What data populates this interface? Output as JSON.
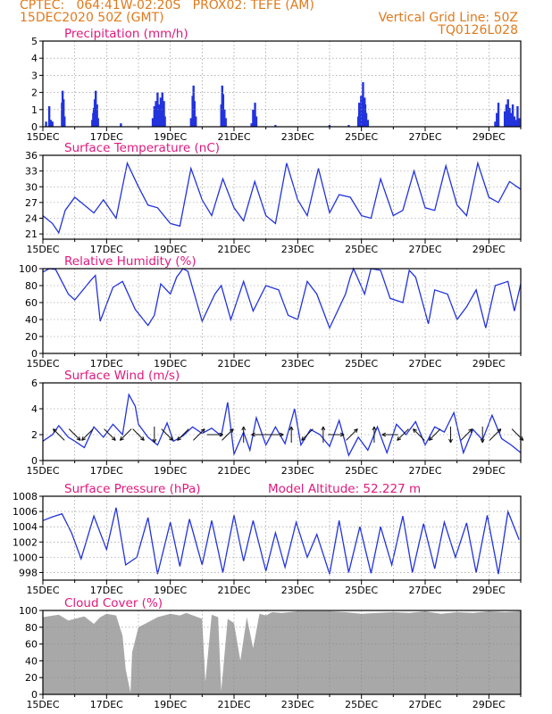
{
  "header": {
    "line1_left": "CPTEC:   064:41W-02:20S   PROX02: TEFE (AM)",
    "line2_left": "15DEC2020 50Z (GMT)",
    "line1_right": "Vertical Grid Line: 50Z",
    "line2_right": "TQ0126L028",
    "color": "#e07a1c"
  },
  "colors": {
    "series": "#2233dd",
    "title": "#e0197d",
    "cloud": "#a8a8a8",
    "grid": "#888888",
    "arrow": "#111111"
  },
  "x_axis": {
    "tick_labels": [
      "15DEC",
      "17DEC",
      "19DEC",
      "21DEC",
      "23DEC",
      "25DEC",
      "27DEC",
      "29DEC"
    ],
    "tick_days": [
      0,
      2,
      4,
      6,
      8,
      10,
      12,
      14
    ],
    "xlim_days": [
      0,
      15
    ]
  },
  "chart_data": [
    {
      "type": "bar",
      "title": "Precipitation (mm/h)",
      "ylim": [
        0,
        5
      ],
      "yticks": [
        0,
        1,
        2,
        3,
        4,
        5
      ],
      "x": [
        0.1,
        0.2,
        0.25,
        0.3,
        0.6,
        0.62,
        0.65,
        0.68,
        1.55,
        1.58,
        1.6,
        1.63,
        1.66,
        1.7,
        1.73,
        2.45,
        3.45,
        3.5,
        3.55,
        3.6,
        3.65,
        3.7,
        3.75,
        3.8,
        3.83,
        4.65,
        4.7,
        4.73,
        4.76,
        4.8,
        5.6,
        5.63,
        5.66,
        5.7,
        5.74,
        6.55,
        6.6,
        6.66,
        6.7,
        7.3,
        9.0,
        9.6,
        9.9,
        9.93,
        9.96,
        9.99,
        10.02,
        10.05,
        10.1,
        10.12,
        10.15,
        10.2,
        14.2,
        14.25,
        14.3,
        14.5,
        14.55,
        14.6,
        14.65,
        14.7,
        14.75,
        14.8,
        14.85,
        14.9,
        14.95
      ],
      "values": [
        0.3,
        1.2,
        0.4,
        0.3,
        1.4,
        2.1,
        1.6,
        0.6,
        0.4,
        0.8,
        1.1,
        1.6,
        2.1,
        1.3,
        0.5,
        0.2,
        0.5,
        1.2,
        1.5,
        2.0,
        1.3,
        1.7,
        2.0,
        1.5,
        0.6,
        0.5,
        1.8,
        2.4,
        1.5,
        0.6,
        1.3,
        2.4,
        1.9,
        1.0,
        0.5,
        0.2,
        1.0,
        1.4,
        0.6,
        0.1,
        0.1,
        0.1,
        0.6,
        1.4,
        1.0,
        1.8,
        1.4,
        2.6,
        1.7,
        1.3,
        0.8,
        0.4,
        0.3,
        0.8,
        1.4,
        0.9,
        1.3,
        1.6,
        1.1,
        0.8,
        1.3,
        0.6,
        0.4,
        1.2,
        0.5
      ]
    },
    {
      "type": "line",
      "title": "Surface Temperature (nC)",
      "ylim": [
        20,
        36
      ],
      "yticks": [
        21,
        24,
        27,
        30,
        33,
        36
      ],
      "x": [
        0,
        0.3,
        0.5,
        0.7,
        1.0,
        1.3,
        1.6,
        1.9,
        2.3,
        2.65,
        3.0,
        3.3,
        3.6,
        4.0,
        4.3,
        4.65,
        5.0,
        5.3,
        5.65,
        6.0,
        6.3,
        6.65,
        7.0,
        7.3,
        7.65,
        8.0,
        8.3,
        8.65,
        9.0,
        9.3,
        9.65,
        10.0,
        10.3,
        10.6,
        11.0,
        11.3,
        11.65,
        12.0,
        12.3,
        12.65,
        13.0,
        13.3,
        13.65,
        14.0,
        14.3,
        14.65,
        15.0
      ],
      "values": [
        24.5,
        23.0,
        21.2,
        25.5,
        28.0,
        26.5,
        25.0,
        27.5,
        24.0,
        34.5,
        30.0,
        26.5,
        26.0,
        23.0,
        22.5,
        33.5,
        27.5,
        24.5,
        31.5,
        26.0,
        23.5,
        31.0,
        24.5,
        23.0,
        34.5,
        27.5,
        24.5,
        33.5,
        25.0,
        28.5,
        28.0,
        24.5,
        24.0,
        31.5,
        24.5,
        25.5,
        33.0,
        26.0,
        25.5,
        34.0,
        26.5,
        24.5,
        34.5,
        28.0,
        27.0,
        31.0,
        29.5
      ]
    },
    {
      "type": "line",
      "title": "Relative Humidity (%)",
      "ylim": [
        0,
        100
      ],
      "yticks": [
        0,
        20,
        40,
        60,
        80,
        100
      ],
      "x": [
        0,
        0.2,
        0.4,
        0.8,
        1.0,
        1.5,
        1.65,
        1.8,
        2.2,
        2.5,
        2.9,
        3.3,
        3.5,
        3.7,
        4.0,
        4.2,
        4.4,
        4.55,
        5.0,
        5.4,
        5.6,
        5.9,
        6.3,
        6.6,
        7.0,
        7.4,
        7.7,
        8.0,
        8.3,
        8.6,
        9.0,
        9.5,
        9.65,
        9.75,
        10.1,
        10.3,
        10.6,
        10.9,
        11.3,
        11.5,
        11.7,
        12.1,
        12.3,
        12.7,
        13.0,
        13.3,
        13.6,
        13.9,
        14.2,
        14.6,
        14.8,
        15.0
      ],
      "values": [
        96,
        100,
        99,
        70,
        63,
        86,
        92,
        38,
        78,
        85,
        52,
        33,
        45,
        82,
        70,
        90,
        100,
        97,
        38,
        70,
        80,
        40,
        85,
        50,
        80,
        75,
        45,
        40,
        85,
        70,
        30,
        70,
        90,
        100,
        70,
        100,
        98,
        65,
        60,
        98,
        90,
        35,
        75,
        70,
        40,
        55,
        75,
        30,
        80,
        85,
        50,
        82
      ]
    },
    {
      "type": "line",
      "title": "Surface Wind (m/s)",
      "ylim": [
        0,
        6
      ],
      "yticks": [
        0,
        2,
        4,
        6
      ],
      "x": [
        0,
        0.3,
        0.5,
        0.8,
        1.0,
        1.3,
        1.6,
        1.9,
        2.2,
        2.5,
        2.7,
        2.9,
        3.0,
        3.3,
        3.6,
        3.9,
        4.1,
        4.4,
        4.7,
        5.0,
        5.3,
        5.6,
        5.8,
        6.0,
        6.3,
        6.5,
        6.7,
        7.0,
        7.3,
        7.6,
        7.9,
        8.1,
        8.4,
        8.7,
        9.0,
        9.3,
        9.6,
        9.9,
        10.2,
        10.5,
        10.8,
        11.1,
        11.4,
        11.7,
        12.0,
        12.3,
        12.6,
        12.9,
        13.2,
        13.5,
        13.8,
        14.1,
        14.4,
        14.7,
        15.0
      ],
      "values": [
        1.5,
        2.0,
        2.7,
        1.8,
        1.5,
        1.0,
        2.6,
        1.8,
        2.8,
        2.0,
        5.1,
        4.2,
        2.8,
        1.8,
        1.2,
        2.9,
        1.5,
        1.9,
        2.6,
        2.1,
        2.5,
        1.9,
        4.5,
        0.5,
        2.2,
        0.8,
        3.3,
        1.2,
        2.6,
        1.3,
        4.0,
        1.2,
        2.4,
        2.0,
        1.1,
        3.1,
        0.4,
        1.8,
        0.8,
        2.6,
        0.6,
        2.8,
        2.0,
        3.0,
        1.2,
        2.6,
        2.2,
        3.7,
        0.6,
        2.4,
        1.6,
        3.5,
        1.7,
        1.2,
        0.6
      ],
      "vector_x": [
        0.5,
        1.0,
        1.4,
        2.1,
        2.6,
        3.0,
        3.5,
        3.9,
        4.4,
        4.9,
        5.4,
        5.8,
        6.3,
        6.8,
        7.3,
        7.8,
        8.3,
        8.8,
        9.2,
        9.7,
        10.4,
        10.9,
        11.3,
        11.8,
        12.3,
        12.8,
        13.3,
        13.8,
        14.2,
        14.9
      ],
      "vector_dir_deg": [
        135,
        315,
        225,
        315,
        225,
        315,
        270,
        315,
        225,
        45,
        0,
        45,
        90,
        180,
        0,
        90,
        225,
        90,
        0,
        45,
        90,
        180,
        225,
        135,
        225,
        270,
        45,
        270,
        45,
        315
      ]
    },
    {
      "type": "line",
      "title": "Surface Pressure (hPa)",
      "annotation": "Model Altitude: 52.227 m",
      "ylim": [
        997,
        1008
      ],
      "yticks": [
        998,
        1000,
        1002,
        1004,
        1006,
        1008
      ],
      "x": [
        0,
        0.3,
        0.6,
        0.9,
        1.2,
        1.6,
        2.0,
        2.3,
        2.6,
        2.95,
        3.3,
        3.6,
        4.0,
        4.3,
        4.6,
        5.0,
        5.3,
        5.65,
        6.0,
        6.3,
        6.6,
        7.0,
        7.3,
        7.6,
        7.95,
        8.3,
        8.6,
        9.0,
        9.3,
        9.6,
        9.95,
        10.3,
        10.6,
        10.95,
        11.3,
        11.6,
        11.95,
        12.3,
        12.6,
        12.95,
        13.3,
        13.6,
        13.95,
        14.3,
        14.6,
        14.95
      ],
      "values": [
        1004.8,
        1005.3,
        1005.7,
        1003.2,
        999.8,
        1005.4,
        1001.0,
        1006.5,
        999.0,
        1000.0,
        1005.2,
        997.8,
        1004.6,
        998.8,
        1005.0,
        999.0,
        1004.8,
        998.0,
        1005.5,
        999.5,
        1004.8,
        998.2,
        1003.2,
        998.7,
        1004.6,
        1000.0,
        1003.0,
        997.8,
        1004.8,
        998.0,
        1004.0,
        997.9,
        1004.0,
        999.0,
        1005.4,
        998.0,
        1004.4,
        998.5,
        1004.6,
        1000.0,
        1004.5,
        998.0,
        1005.5,
        997.8,
        1006.0,
        1002.3
      ]
    },
    {
      "type": "area",
      "title": "Cloud Cover (%)",
      "ylim": [
        0,
        100
      ],
      "yticks": [
        0,
        20,
        40,
        60,
        80,
        100
      ],
      "x": [
        0,
        0.5,
        0.8,
        1.0,
        1.3,
        1.6,
        1.8,
        2.0,
        2.3,
        2.5,
        2.6,
        2.75,
        2.8,
        3.0,
        3.3,
        3.6,
        4.0,
        4.3,
        4.5,
        5.0,
        5.1,
        5.3,
        5.5,
        5.6,
        5.8,
        6.0,
        6.2,
        6.4,
        6.6,
        6.8,
        7.0,
        7.2,
        7.5,
        8.0,
        8.5,
        9.0,
        9.5,
        10.0,
        10.5,
        11.0,
        11.5,
        12.0,
        12.5,
        13.0,
        13.5,
        14.0,
        14.5,
        15.0
      ],
      "values": [
        92,
        95,
        88,
        90,
        93,
        84,
        92,
        96,
        94,
        70,
        30,
        2,
        50,
        80,
        86,
        92,
        96,
        94,
        97,
        90,
        15,
        95,
        92,
        4,
        90,
        85,
        40,
        92,
        55,
        96,
        94,
        98,
        97,
        99,
        99,
        99,
        98,
        96,
        97,
        98,
        97,
        99,
        96,
        98,
        97,
        99,
        98,
        99
      ]
    }
  ]
}
